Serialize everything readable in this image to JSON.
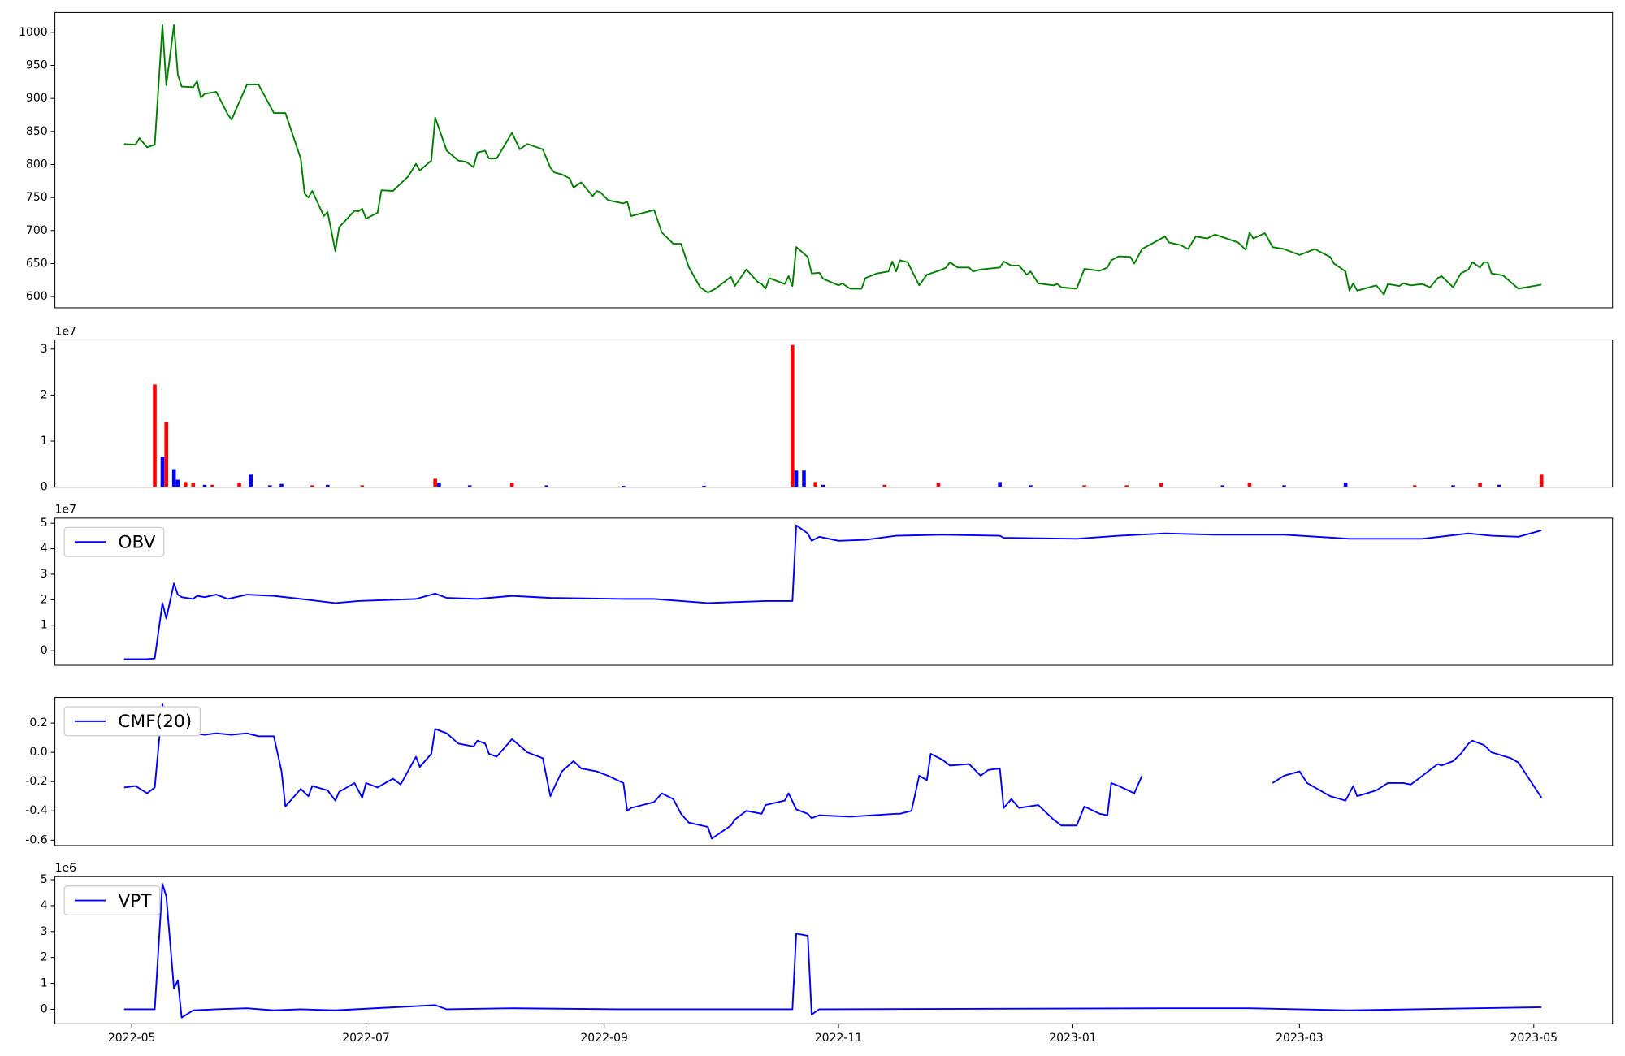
{
  "chart_data": [
    {
      "type": "line",
      "xlim": [
        -20,
        385.5
      ],
      "ylim": [
        583,
        1030
      ],
      "yticks": [
        600,
        650,
        700,
        750,
        800,
        850,
        900,
        950,
        1000
      ],
      "x": [
        -2,
        1,
        2,
        4,
        6,
        8,
        9,
        11,
        12,
        13,
        16,
        17,
        18,
        19,
        22,
        25,
        26,
        30,
        33,
        37,
        40,
        44,
        45,
        46,
        47,
        50,
        51,
        53,
        54,
        58,
        59,
        60,
        61,
        64,
        65,
        68,
        72,
        74,
        75,
        78,
        79,
        82,
        85,
        87,
        89,
        90,
        92,
        93,
        95,
        99,
        101,
        103,
        107,
        109,
        110,
        112,
        114,
        115,
        117,
        120,
        121,
        122,
        124,
        128,
        129,
        130,
        136,
        138,
        141,
        143,
        145,
        148,
        150,
        152,
        156,
        157,
        160,
        163,
        164,
        165,
        166,
        170,
        171,
        172,
        173,
        176,
        177,
        179,
        180,
        184,
        185,
        187,
        190,
        191,
        194,
        197,
        198,
        199,
        200,
        202,
        205,
        207,
        211,
        212,
        213,
        215,
        218,
        219,
        221,
        226,
        227,
        229,
        231,
        233,
        234,
        236,
        240,
        241,
        242,
        246,
        248,
        252,
        254,
        255,
        257,
        260,
        261,
        263,
        269,
        270,
        273,
        275,
        277,
        280,
        282,
        288,
        290,
        291,
        292,
        295,
        297,
        300,
        304,
        308,
        312,
        313,
        316,
        317,
        318,
        319,
        324,
        326,
        327,
        330,
        331,
        333,
        336,
        338,
        340,
        341,
        344,
        346,
        348,
        349,
        351,
        352,
        353,
        354,
        357,
        359,
        361,
        363,
        367
      ],
      "series": [
        {
          "color": "#008000",
          "values": [
            831,
            830,
            840,
            826,
            830,
            1011,
            920,
            1011,
            936,
            918,
            917,
            926,
            901,
            907,
            910,
            876,
            868,
            921,
            921,
            878,
            878,
            809,
            756,
            750,
            760,
            722,
            728,
            669,
            705,
            730,
            729,
            733,
            718,
            727,
            761,
            760,
            782,
            801,
            791,
            806,
            871,
            821,
            806,
            804,
            796,
            818,
            821,
            809,
            809,
            848,
            823,
            831,
            823,
            795,
            788,
            785,
            779,
            765,
            773,
            752,
            760,
            758,
            746,
            741,
            744,
            722,
            731,
            697,
            680,
            680,
            645,
            614,
            606,
            612,
            630,
            616,
            641,
            622,
            619,
            612,
            628,
            619,
            631,
            616,
            675,
            660,
            635,
            636,
            627,
            617,
            620,
            612,
            612,
            628,
            635,
            638,
            653,
            638,
            655,
            652,
            617,
            633,
            641,
            644,
            652,
            644,
            644,
            638,
            641,
            644,
            653,
            647,
            647,
            633,
            638,
            620,
            617,
            619,
            614,
            612,
            642,
            639,
            644,
            655,
            661,
            660,
            650,
            672,
            691,
            682,
            678,
            672,
            691,
            688,
            694,
            682,
            671,
            697,
            688,
            696,
            675,
            672,
            663,
            672,
            660,
            650,
            638,
            609,
            620,
            609,
            617,
            603,
            619,
            616,
            620,
            617,
            619,
            614,
            628,
            631,
            614,
            635,
            641,
            652,
            644,
            652,
            652,
            635,
            632,
            622,
            612,
            614,
            618
          ]
        }
      ]
    },
    {
      "type": "bar",
      "xlim": [
        -20,
        385.5
      ],
      "ylim": [
        0,
        3.2
      ],
      "yticks": [
        0,
        1,
        2,
        3
      ],
      "offset_label": "1e7",
      "x": [
        6,
        8,
        9,
        11,
        12,
        14,
        16,
        19,
        21,
        28,
        31,
        36,
        39,
        47,
        51,
        60,
        79,
        80,
        88,
        99,
        108,
        128,
        149,
        172,
        173,
        175,
        178,
        180,
        196,
        210,
        226,
        234,
        248,
        259,
        268,
        284,
        291,
        300,
        316,
        334,
        344,
        351,
        356,
        367
      ],
      "values": [
        2.23,
        0.66,
        1.41,
        0.39,
        0.16,
        0.11,
        0.09,
        0.05,
        0.05,
        0.09,
        0.27,
        0.04,
        0.07,
        0.04,
        0.05,
        0.04,
        0.18,
        0.09,
        0.04,
        0.09,
        0.04,
        0.03,
        0.03,
        3.09,
        0.36,
        0.36,
        0.11,
        0.05,
        0.05,
        0.09,
        0.11,
        0.04,
        0.04,
        0.04,
        0.09,
        0.04,
        0.09,
        0.04,
        0.09,
        0.04,
        0.04,
        0.09,
        0.05,
        0.27
      ],
      "colors": [
        "#ff0000",
        "#0000ff",
        "#ff0000",
        "#0000ff",
        "#0000ff",
        "#ff0000",
        "#ff0000",
        "#0000ff",
        "#ff0000",
        "#ff0000",
        "#0000ff",
        "#0000ff",
        "#0000ff",
        "#ff0000",
        "#0000ff",
        "#ff0000",
        "#ff0000",
        "#0000ff",
        "#0000ff",
        "#ff0000",
        "#0000ff",
        "#0000ff",
        "#0000ff",
        "#ff0000",
        "#0000ff",
        "#0000ff",
        "#ff0000",
        "#0000ff",
        "#ff0000",
        "#ff0000",
        "#0000ff",
        "#0000ff",
        "#ff0000",
        "#ff0000",
        "#ff0000",
        "#0000ff",
        "#ff0000",
        "#0000ff",
        "#0000ff",
        "#ff0000",
        "#0000ff",
        "#ff0000",
        "#0000ff",
        "#ff0000"
      ]
    },
    {
      "type": "line",
      "xlim": [
        -20,
        385.5
      ],
      "ylim": [
        -0.57,
        5.2
      ],
      "yticks": [
        0,
        1,
        2,
        3,
        4,
        5
      ],
      "offset_label": "1e7",
      "legend": "upper left",
      "x": [
        -2,
        4,
        6,
        8,
        9,
        11,
        12,
        13,
        16,
        17,
        19,
        22,
        25,
        30,
        37,
        44,
        53,
        59,
        74,
        79,
        82,
        90,
        99,
        109,
        128,
        136,
        150,
        165,
        172,
        173,
        176,
        177,
        179,
        184,
        191,
        199,
        211,
        226,
        227,
        246,
        257,
        269,
        282,
        300,
        317,
        336,
        348,
        354,
        361,
        367
      ],
      "series": [
        {
          "name": "OBV",
          "color": "#0000ff",
          "values": [
            -0.33,
            -0.33,
            -0.3,
            1.87,
            1.26,
            2.64,
            2.2,
            2.1,
            2.03,
            2.15,
            2.1,
            2.2,
            2.03,
            2.2,
            2.15,
            2.03,
            1.87,
            1.95,
            2.03,
            2.24,
            2.07,
            2.03,
            2.15,
            2.07,
            2.03,
            2.03,
            1.87,
            1.95,
            1.95,
            4.92,
            4.6,
            4.31,
            4.47,
            4.31,
            4.35,
            4.51,
            4.55,
            4.51,
            4.43,
            4.39,
            4.51,
            4.6,
            4.55,
            4.55,
            4.39,
            4.39,
            4.6,
            4.51,
            4.47,
            4.72
          ]
        }
      ]
    },
    {
      "type": "line",
      "xlim": [
        -20,
        385.5
      ],
      "ylim": [
        -0.637,
        0.375
      ],
      "yticks": [
        -0.6,
        -0.4,
        -0.2,
        {
          "value": 0,
          "label": "0.0"
        },
        0.2
      ],
      "legend": "upper left",
      "x": [
        -2,
        1,
        4,
        6,
        8,
        9,
        12,
        16,
        19,
        22,
        26,
        30,
        33,
        37,
        39,
        40,
        44,
        46,
        47,
        51,
        53,
        54,
        58,
        60,
        61,
        64,
        68,
        70,
        74,
        75,
        78,
        79,
        82,
        85,
        89,
        90,
        92,
        93,
        95,
        99,
        103,
        107,
        109,
        110,
        112,
        115,
        117,
        121,
        124,
        128,
        129,
        130,
        136,
        138,
        141,
        143,
        145,
        150,
        151,
        156,
        157,
        160,
        164,
        165,
        170,
        171,
        173,
        176,
        177,
        179,
        187,
        199,
        200,
        203,
        205,
        207,
        208,
        211,
        213,
        218,
        221,
        223,
        226,
        227,
        229,
        231,
        236,
        240,
        242,
        246,
        248,
        252,
        254,
        255,
        257,
        261,
        263,
        279,
        297,
        300,
        304,
        306,
        312,
        316,
        318,
        319,
        324,
        327,
        331,
        333,
        336,
        340,
        341,
        344,
        346,
        348,
        349,
        352,
        354,
        359,
        361,
        367
      ],
      "series": [
        {
          "name": "CMF(20)",
          "color": "#0000ff",
          "values": [
            -0.24,
            -0.23,
            -0.28,
            -0.24,
            0.33,
            0.18,
            0.15,
            0.13,
            0.12,
            0.13,
            0.12,
            0.13,
            0.11,
            0.11,
            -0.13,
            -0.37,
            -0.25,
            -0.3,
            -0.23,
            -0.26,
            -0.33,
            -0.27,
            -0.21,
            -0.31,
            -0.21,
            -0.24,
            -0.18,
            -0.22,
            -0.03,
            -0.1,
            -0.01,
            0.16,
            0.13,
            0.06,
            0.04,
            0.08,
            0.06,
            -0.01,
            -0.03,
            0.09,
            0,
            -0.04,
            -0.3,
            -0.24,
            -0.13,
            -0.06,
            -0.11,
            -0.13,
            -0.16,
            -0.21,
            -0.4,
            -0.38,
            -0.34,
            -0.28,
            -0.32,
            -0.42,
            -0.48,
            -0.51,
            -0.59,
            -0.5,
            -0.46,
            -0.4,
            -0.42,
            -0.36,
            -0.33,
            -0.28,
            -0.39,
            -0.42,
            -0.45,
            -0.43,
            -0.44,
            -0.42,
            -0.42,
            -0.4,
            -0.16,
            -0.19,
            -0.01,
            -0.05,
            -0.09,
            -0.08,
            -0.16,
            -0.12,
            -0.11,
            -0.38,
            -0.32,
            -0.38,
            -0.36,
            -0.46,
            -0.5,
            -0.5,
            -0.37,
            -0.42,
            -0.43,
            -0.21,
            -0.23,
            -0.28,
            -0.16,
            null,
            -0.21,
            -0.16,
            -0.13,
            -0.21,
            -0.3,
            -0.33,
            -0.23,
            -0.3,
            -0.26,
            -0.21,
            -0.21,
            -0.22,
            -0.16,
            -0.08,
            -0.09,
            -0.06,
            -0.01,
            0.06,
            0.08,
            0.05,
            0,
            -0.04,
            -0.07,
            -0.31
          ]
        }
      ]
    },
    {
      "type": "line",
      "xlim": [
        -20,
        385.5
      ],
      "ylim": [
        -0.56,
        5.12
      ],
      "yticks": [
        0,
        1,
        2,
        3,
        4,
        5
      ],
      "offset_label": "1e6",
      "legend": "upper left",
      "xticks": [
        {
          "value": 0,
          "label": "2022-05"
        },
        {
          "value": 61,
          "label": "2022-07"
        },
        {
          "value": 123,
          "label": "2022-09"
        },
        {
          "value": 184,
          "label": "2022-11"
        },
        {
          "value": 245,
          "label": "2023-01"
        },
        {
          "value": 304,
          "label": "2023-03"
        },
        {
          "value": 365,
          "label": "2023-05"
        }
      ],
      "x": [
        -2,
        6,
        8,
        9,
        11,
        12,
        13,
        16,
        22,
        30,
        37,
        44,
        53,
        79,
        82,
        99,
        128,
        172,
        173,
        176,
        177,
        179,
        269,
        291,
        317,
        367
      ],
      "series": [
        {
          "name": "VPT",
          "color": "#0000ff",
          "values": [
            0,
            0,
            4.84,
            4.36,
            0.8,
            1.12,
            -0.32,
            -0.04,
            0,
            0.04,
            -0.04,
            0,
            -0.04,
            0.16,
            0,
            0.04,
            0,
            0,
            2.92,
            2.84,
            -0.2,
            0,
            0.04,
            0.04,
            -0.04,
            0.08
          ]
        }
      ]
    }
  ]
}
